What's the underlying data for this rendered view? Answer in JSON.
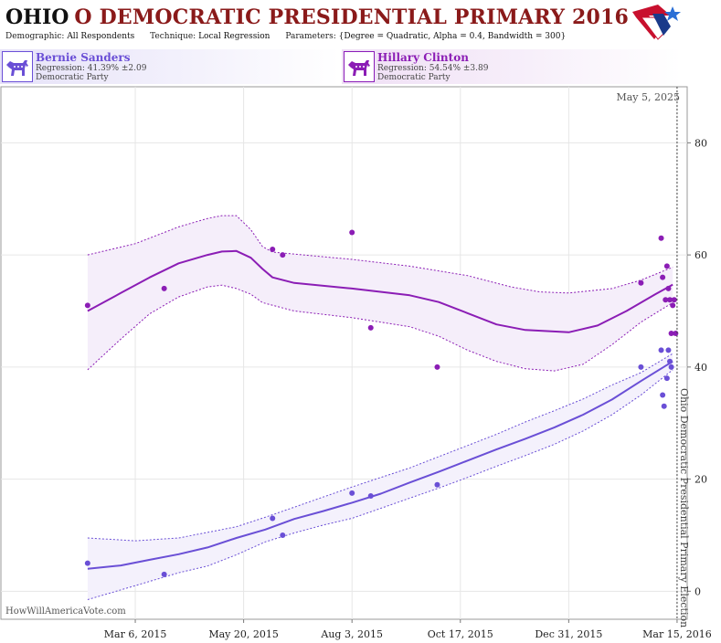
{
  "header": {
    "state": "OHIO",
    "rest": "O DEMOCRATIC PRESIDENTIAL PRIMARY 2016",
    "demographic_label": "Demographic:",
    "demographic_value": "All Respondents",
    "technique_label": "Technique:",
    "technique_value": "Local Regression",
    "parameters_label": "Parameters:",
    "parameters_value": "{Degree = Quadratic, Alpha = 0.4, Bandwidth = 300}"
  },
  "candidates": [
    {
      "name": "Bernie Sanders",
      "regression": "Regression: 41.39% ±2.09",
      "party": "Democratic Party",
      "color": "#6a4fd6"
    },
    {
      "name": "Hillary Clinton",
      "regression": "Regression: 54.54% ±3.89",
      "party": "Democratic Party",
      "color": "#8b1db5"
    }
  ],
  "chart_data": {
    "type": "scatter",
    "today_label": "May 5, 2025",
    "election_label": "Ohio Democratic Presidential Primary Election",
    "watermark": "HowWillAmericaVote.com",
    "x_tick_labels": [
      "Mar 6, 2015",
      "May 20, 2015",
      "Aug 3, 2015",
      "Oct 17, 2015",
      "Dec 31, 2015",
      "Mar 15, 2016"
    ],
    "x_tick_days": [
      0,
      75,
      150,
      225,
      300,
      375
    ],
    "xlim_days": [
      -93,
      382
    ],
    "election_day": 375,
    "y_ticks": [
      "0",
      "20",
      "40",
      "60",
      "80"
    ],
    "ylim": [
      -5,
      90
    ],
    "series": [
      {
        "name": "Hillary Clinton",
        "color": "#8b1db5",
        "band_fill": "#f5eefa",
        "points": [
          [
            -33,
            51
          ],
          [
            20,
            54
          ],
          [
            95,
            61
          ],
          [
            102,
            60
          ],
          [
            150,
            64
          ],
          [
            163,
            47
          ],
          [
            209,
            40
          ],
          [
            350,
            55
          ],
          [
            364,
            63
          ],
          [
            365,
            56
          ],
          [
            367,
            52
          ],
          [
            368,
            58
          ],
          [
            369,
            54
          ],
          [
            370,
            52
          ],
          [
            371,
            46
          ],
          [
            372,
            51
          ],
          [
            373,
            52
          ],
          [
            374,
            46
          ]
        ],
        "fit": [
          [
            -33,
            50
          ],
          [
            -10,
            53.2
          ],
          [
            10,
            56
          ],
          [
            30,
            58.5
          ],
          [
            50,
            60
          ],
          [
            60,
            60.6
          ],
          [
            70,
            60.7
          ],
          [
            80,
            59.5
          ],
          [
            88,
            57.5
          ],
          [
            95,
            56
          ],
          [
            110,
            55
          ],
          [
            150,
            54
          ],
          [
            190,
            52.8
          ],
          [
            210,
            51.6
          ],
          [
            230,
            49.6
          ],
          [
            250,
            47.6
          ],
          [
            270,
            46.6
          ],
          [
            300,
            46.2
          ],
          [
            320,
            47.4
          ],
          [
            340,
            50
          ],
          [
            360,
            53
          ],
          [
            372,
            54.7
          ]
        ],
        "upper": [
          [
            -33,
            60
          ],
          [
            0,
            62
          ],
          [
            30,
            65
          ],
          [
            50,
            66.5
          ],
          [
            60,
            67
          ],
          [
            70,
            67
          ],
          [
            80,
            64.5
          ],
          [
            88,
            61.5
          ],
          [
            95,
            60.5
          ],
          [
            150,
            59.2
          ],
          [
            190,
            58
          ],
          [
            230,
            56.3
          ],
          [
            260,
            54.3
          ],
          [
            280,
            53.4
          ],
          [
            300,
            53.2
          ],
          [
            330,
            54
          ],
          [
            350,
            55.5
          ],
          [
            372,
            57.8
          ]
        ],
        "lower": [
          [
            -33,
            39.5
          ],
          [
            -10,
            45
          ],
          [
            10,
            49.5
          ],
          [
            30,
            52.5
          ],
          [
            50,
            54.3
          ],
          [
            60,
            54.6
          ],
          [
            70,
            54
          ],
          [
            80,
            53
          ],
          [
            88,
            51.5
          ],
          [
            110,
            50
          ],
          [
            150,
            48.8
          ],
          [
            190,
            47.2
          ],
          [
            210,
            45.5
          ],
          [
            230,
            43
          ],
          [
            250,
            41
          ],
          [
            270,
            39.7
          ],
          [
            290,
            39.3
          ],
          [
            310,
            40.5
          ],
          [
            330,
            44
          ],
          [
            350,
            48
          ],
          [
            372,
            51.5
          ]
        ]
      },
      {
        "name": "Bernie Sanders",
        "color": "#6a4fd6",
        "band_fill": "#f4f1fc",
        "points": [
          [
            -33,
            5
          ],
          [
            20,
            3
          ],
          [
            95,
            13
          ],
          [
            102,
            10
          ],
          [
            150,
            17.5
          ],
          [
            163,
            17
          ],
          [
            209,
            19
          ],
          [
            350,
            40
          ],
          [
            364,
            43
          ],
          [
            365,
            35
          ],
          [
            366,
            33
          ],
          [
            368,
            38
          ],
          [
            369,
            43
          ],
          [
            370,
            41
          ],
          [
            371,
            40
          ]
        ],
        "fit": [
          [
            -33,
            4
          ],
          [
            -10,
            4.6
          ],
          [
            10,
            5.6
          ],
          [
            30,
            6.6
          ],
          [
            50,
            7.8
          ],
          [
            70,
            9.5
          ],
          [
            90,
            11
          ],
          [
            110,
            12.9
          ],
          [
            130,
            14.3
          ],
          [
            150,
            15.8
          ],
          [
            170,
            17.4
          ],
          [
            190,
            19.4
          ],
          [
            210,
            21.3
          ],
          [
            230,
            23.3
          ],
          [
            250,
            25.3
          ],
          [
            270,
            27.2
          ],
          [
            290,
            29.2
          ],
          [
            310,
            31.5
          ],
          [
            330,
            34.2
          ],
          [
            350,
            37.5
          ],
          [
            372,
            41
          ]
        ],
        "upper": [
          [
            -33,
            9.5
          ],
          [
            0,
            9
          ],
          [
            30,
            9.5
          ],
          [
            50,
            10.5
          ],
          [
            70,
            11.5
          ],
          [
            90,
            13.2
          ],
          [
            110,
            15
          ],
          [
            130,
            16.8
          ],
          [
            150,
            18.6
          ],
          [
            170,
            20.3
          ],
          [
            190,
            22
          ],
          [
            210,
            24
          ],
          [
            230,
            26
          ],
          [
            250,
            28
          ],
          [
            270,
            30.2
          ],
          [
            290,
            32.2
          ],
          [
            310,
            34.3
          ],
          [
            330,
            36.8
          ],
          [
            350,
            39
          ],
          [
            372,
            42.4
          ]
        ],
        "lower": [
          [
            -33,
            -1.5
          ],
          [
            0,
            1
          ],
          [
            30,
            3.3
          ],
          [
            50,
            4.5
          ],
          [
            70,
            6.5
          ],
          [
            90,
            8.8
          ],
          [
            110,
            10.4
          ],
          [
            130,
            11.8
          ],
          [
            150,
            13
          ],
          [
            170,
            14.8
          ],
          [
            190,
            16.6
          ],
          [
            210,
            18.4
          ],
          [
            230,
            20.3
          ],
          [
            250,
            22.3
          ],
          [
            270,
            24.2
          ],
          [
            290,
            26.2
          ],
          [
            310,
            28.6
          ],
          [
            330,
            31.5
          ],
          [
            350,
            35
          ],
          [
            372,
            39.5
          ]
        ]
      }
    ]
  }
}
